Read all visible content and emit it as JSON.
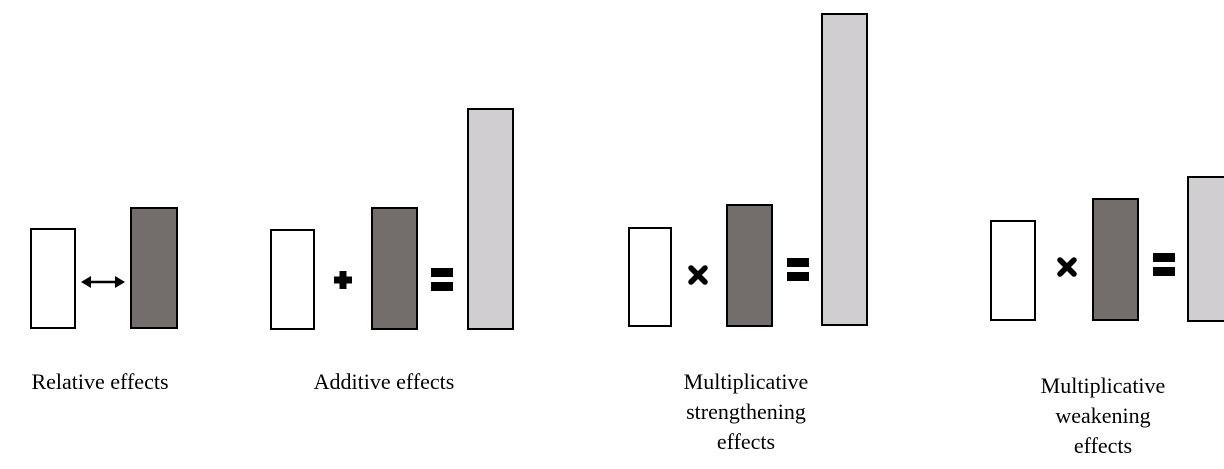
{
  "colors": {
    "white_box": "#ffffff",
    "dark_box": "#736e6c",
    "light_box": "#d0ced0",
    "outline": "#000000"
  },
  "panels": [
    {
      "id": "relative",
      "operator": "double-arrow-icon",
      "label_lines": [
        "Relative effects"
      ]
    },
    {
      "id": "additive",
      "operators": [
        "plus-icon",
        "equals-icon"
      ],
      "label_lines": [
        "Additive effects"
      ]
    },
    {
      "id": "multiplicative-strengthening",
      "operators": [
        "multiply-icon",
        "equals-icon"
      ],
      "label_lines": [
        "Multiplicative",
        "strengthening",
        "effects"
      ]
    },
    {
      "id": "multiplicative-weakening",
      "operators": [
        "multiply-icon",
        "equals-icon"
      ],
      "label_lines": [
        "Multiplicative",
        "weakening",
        "effects"
      ]
    }
  ]
}
